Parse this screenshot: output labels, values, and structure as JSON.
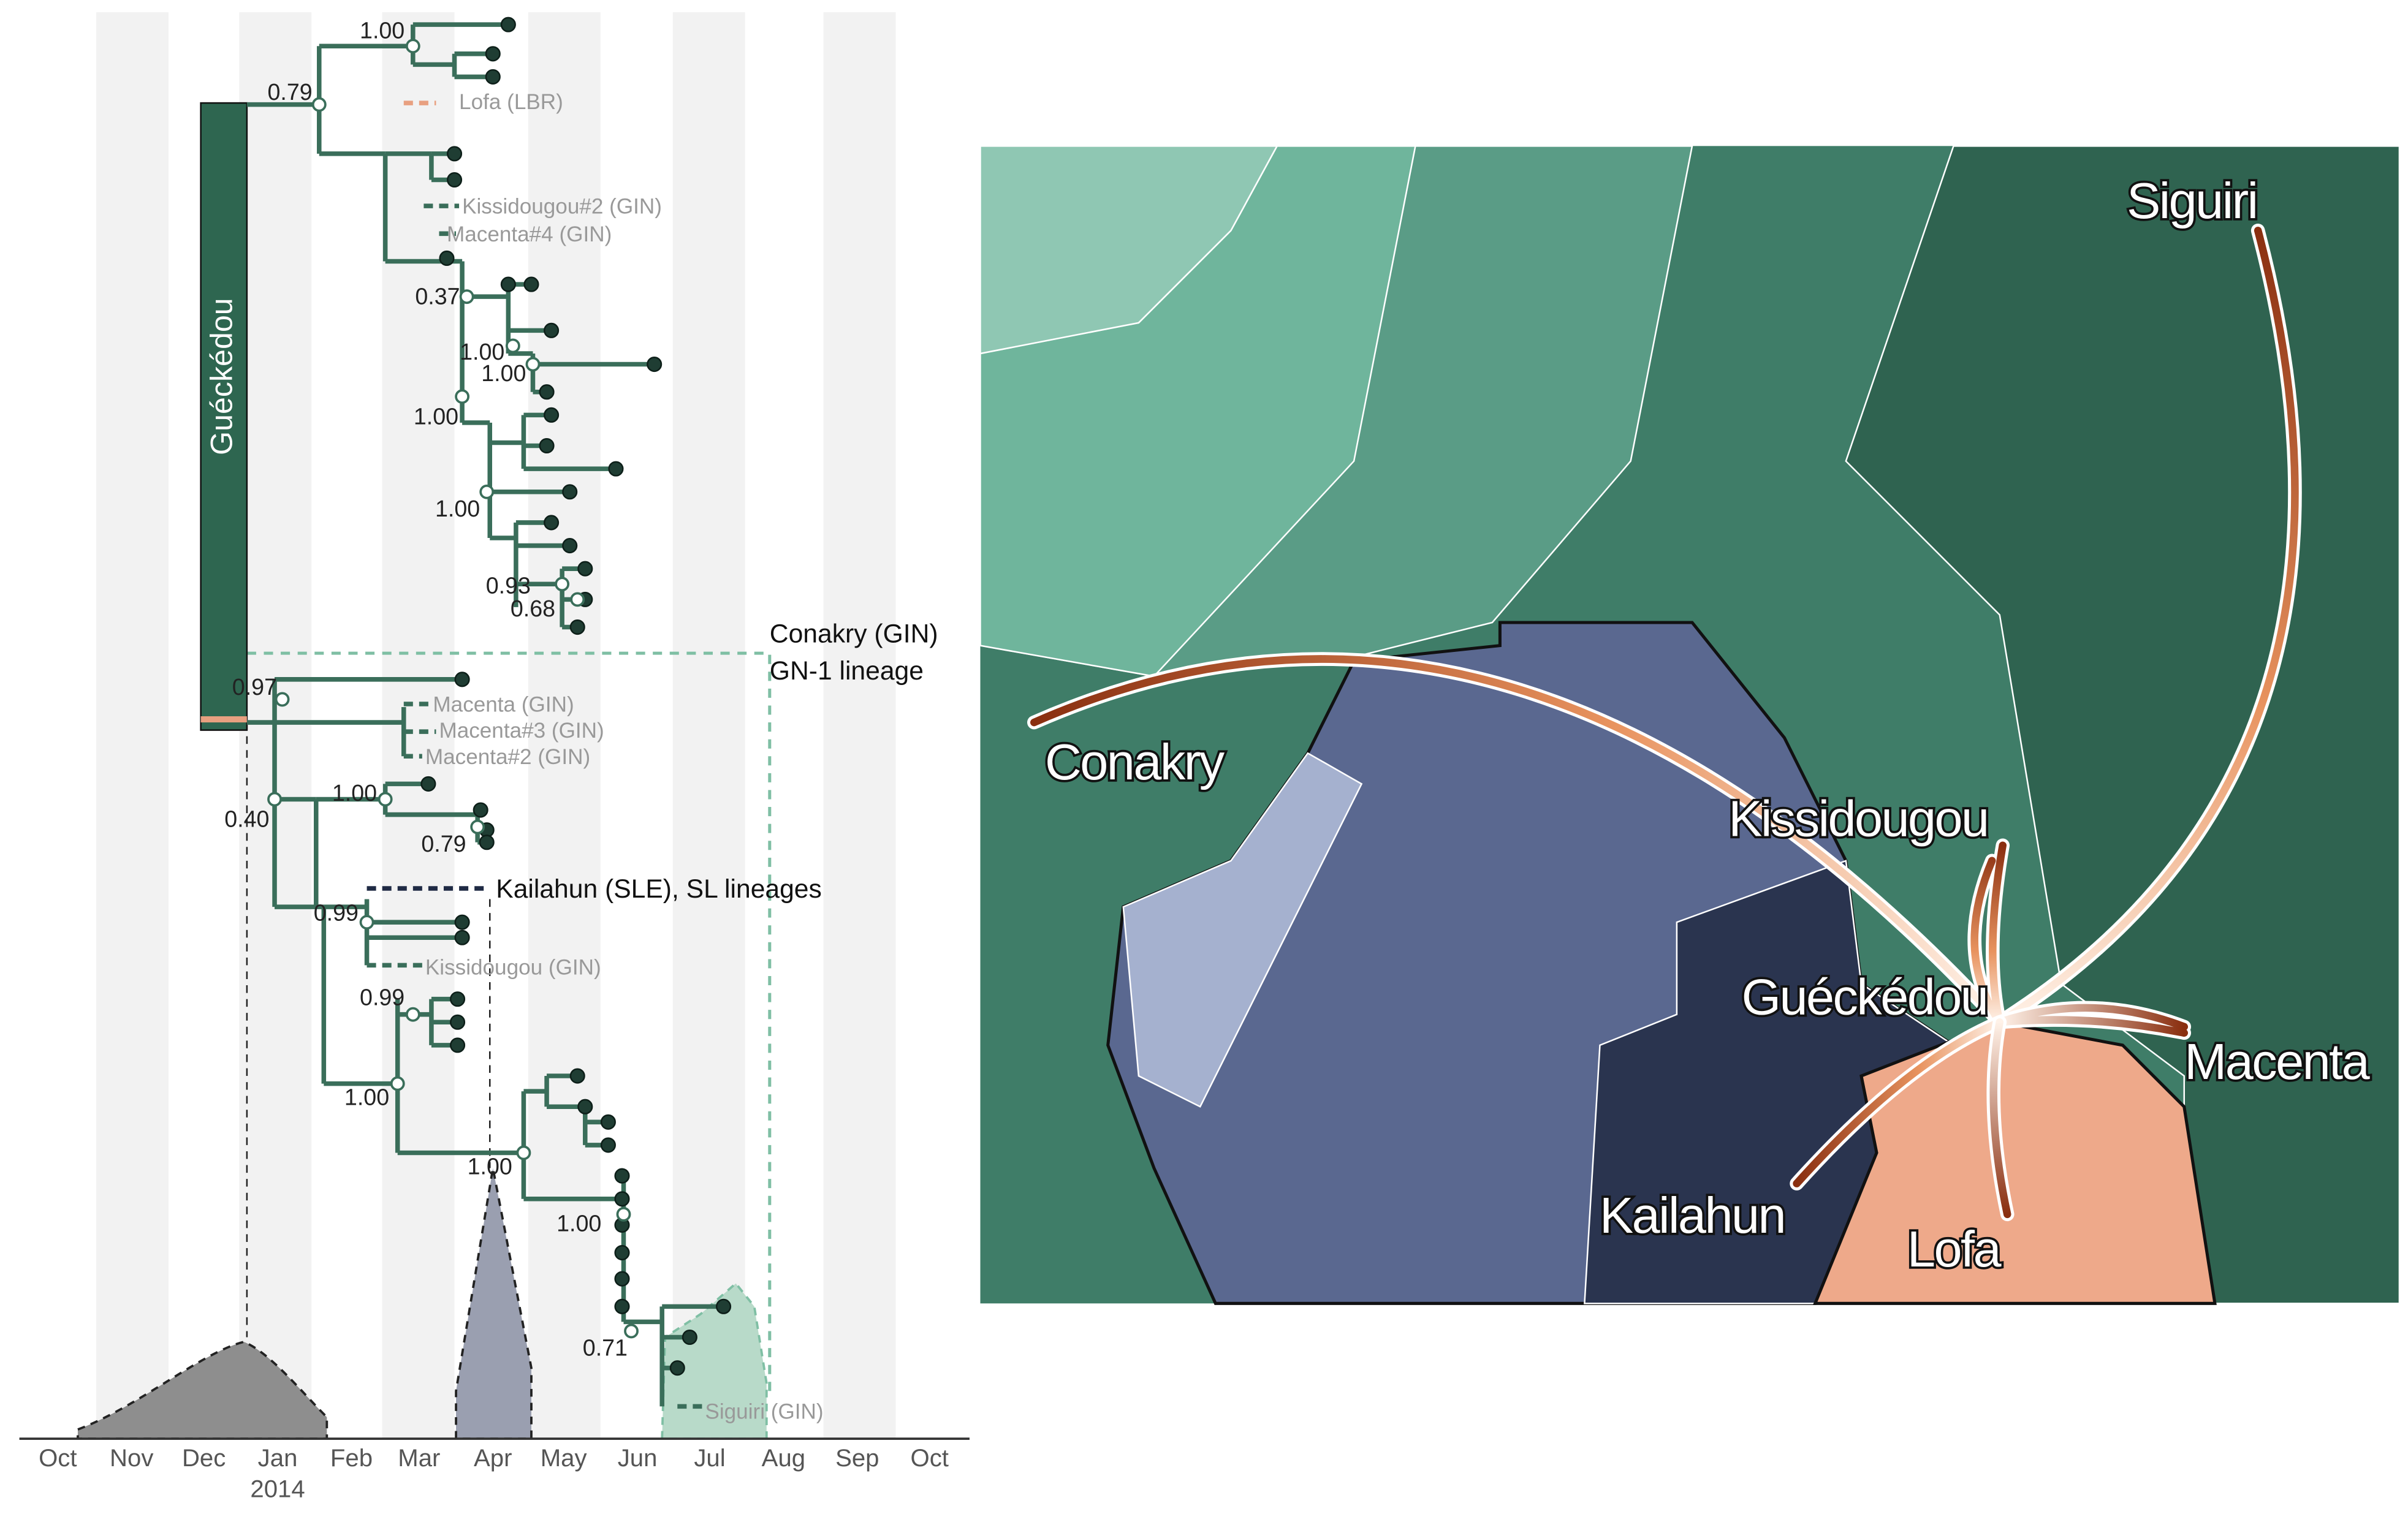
{
  "timeline": {
    "months": [
      "Oct",
      "Nov",
      "Dec",
      "Jan",
      "Feb",
      "Mar",
      "Apr",
      "May",
      "Jun",
      "Jul",
      "Aug",
      "Sep",
      "Oct"
    ],
    "year": "2014"
  },
  "tree": {
    "clade": "Guéckédou",
    "tips": [
      "Lofa (LBR)",
      "Kissidougou#2 (GIN)",
      "Macenta#4 (GIN)",
      "Macenta (GIN)",
      "Macenta#3 (GIN)",
      "Macenta#2 (GIN)",
      "Kissidougou (GIN)",
      "Siguiri (GIN)"
    ],
    "support": [
      "1.00",
      "0.79",
      "0.37",
      "1.00",
      "1.00",
      "1.00",
      "1.00",
      "0.93",
      "0.68",
      "0.97",
      "0.40",
      "1.00",
      "0.79",
      "0.99",
      "0.99",
      "1.00",
      "1.00",
      "1.00",
      "0.71"
    ],
    "annotations": [
      "Conakry (GIN)",
      "GN-1 lineage",
      "Kailahun (SLE), SL lineages"
    ]
  },
  "map": {
    "places": [
      "Siguiri",
      "Conakry",
      "Kissidougou",
      "Guéckédou",
      "Macenta",
      "Kailahun",
      "Lofa"
    ]
  }
}
